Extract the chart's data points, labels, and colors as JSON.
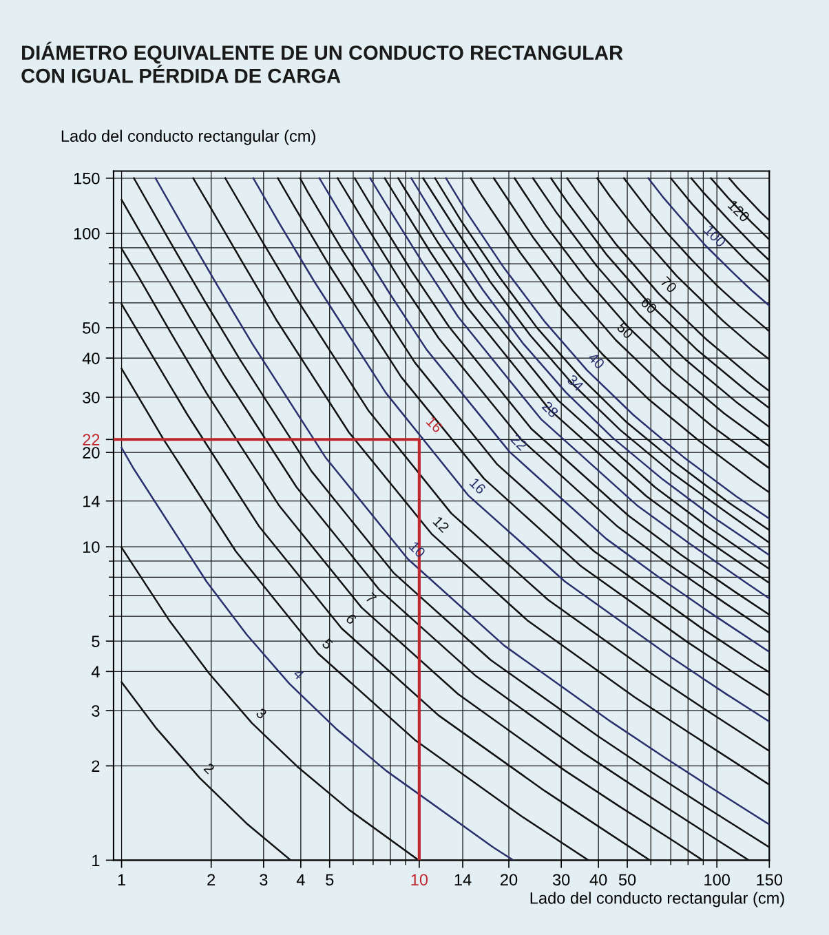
{
  "chart_data": {
    "type": "line",
    "title": "DIÁMETRO EQUIVALENTE DE UN CONDUCTO RECTANGULAR\nCON IGUAL PÉRDIDA DE CARGA",
    "xlabel": "Lado del conducto rectangular (cm)",
    "ylabel": "Lado del conducto rectangular (cm)",
    "log": "xy",
    "grid": true,
    "legend": false,
    "marker": "none",
    "line_style": "solid",
    "xlim": [
      0.94,
      150
    ],
    "ylim": [
      1,
      158
    ],
    "xticks": [
      1,
      2,
      3,
      4,
      5,
      10,
      14,
      20,
      30,
      40,
      50,
      100,
      150
    ],
    "yticks": [
      1,
      2,
      3,
      4,
      5,
      10,
      14,
      20,
      22,
      30,
      40,
      50,
      100,
      150
    ],
    "annotations": [
      {
        "text": "16",
        "x": 10,
        "y": 22
      }
    ],
    "series": [
      {
        "name": "2",
        "color": "#111111",
        "x": [
          1,
          1.31,
          1.83,
          2.63,
          3.7
        ],
        "values": [
          3.7,
          2.63,
          1.83,
          1.31,
          1
        ]
      },
      {
        "name": "3",
        "color": "#111111",
        "x": [
          1,
          1.45,
          1.97,
          2.74,
          3.94,
          5.8,
          9.95
        ],
        "values": [
          9.95,
          5.8,
          3.94,
          2.74,
          1.97,
          1.45,
          1
        ]
      },
      {
        "name": "4",
        "color": "#2a2f6e",
        "x": [
          1,
          1.1,
          1.93,
          2.63,
          3.66,
          5.25,
          7.74,
          17.7,
          20.7
        ],
        "values": [
          20.7,
          17.7,
          7.74,
          5.25,
          3.66,
          2.63,
          1.93,
          1.1,
          1
        ]
      },
      {
        "name": "5",
        "color": "#111111",
        "x": [
          1,
          1.38,
          2.42,
          4.57,
          9.67,
          22.1,
          37
        ],
        "values": [
          37,
          22.1,
          9.67,
          4.57,
          2.42,
          1.38,
          1
        ]
      },
      {
        "name": "6",
        "color": "#111111",
        "x": [
          1,
          1.27,
          1.66,
          2.9,
          5.49,
          11.6,
          26.5,
          40.6,
          59.5
        ],
        "values": [
          59.5,
          40.6,
          26.5,
          11.6,
          5.49,
          2.9,
          1.66,
          1.27,
          1
        ]
      },
      {
        "name": "7",
        "color": "#111111",
        "x": [
          1,
          1.14,
          1.48,
          1.93,
          3.39,
          6.4,
          13.5,
          30.9,
          47.3,
          72.7,
          89.5
        ],
        "values": [
          89.5,
          72.7,
          47.3,
          30.9,
          13.5,
          6.4,
          3.39,
          1.93,
          1.48,
          1.14,
          1
        ]
      },
      {
        "color": "#111111",
        "x": [
          1,
          1.3,
          1.69,
          2.21,
          3.87,
          7.32,
          15.5,
          35.3,
          54.1,
          83.1,
          128
        ],
        "values": [
          128,
          83.1,
          54.1,
          35.3,
          15.5,
          7.32,
          3.87,
          2.21,
          1.69,
          1.3,
          1
        ]
      },
      {
        "color": "#111111",
        "x": [
          1.1,
          1.46,
          1.9,
          2.49,
          4.35,
          8.23,
          17.4,
          39.8,
          60.9,
          93.5,
          150
        ],
        "values": [
          150,
          93.5,
          60.9,
          39.8,
          17.4,
          8.23,
          4.35,
          2.49,
          1.9,
          1.46,
          1.1
        ]
      },
      {
        "name": "10",
        "color": "#2a2f6e",
        "x": [
          1.3,
          1.62,
          2.11,
          2.76,
          4.84,
          9.15,
          19.3,
          44.2,
          67.6,
          104,
          150
        ],
        "values": [
          150,
          104,
          67.6,
          44.2,
          19.3,
          9.15,
          4.84,
          2.76,
          2.11,
          1.62,
          1.3
        ]
      },
      {
        "name": "12",
        "color": "#111111",
        "x": [
          1.74,
          1.95,
          2.54,
          3.31,
          5.8,
          11,
          23.2,
          53,
          81.2,
          125,
          150
        ],
        "values": [
          150,
          125,
          81.2,
          53,
          23.2,
          11,
          5.8,
          3.31,
          2.54,
          1.95,
          1.74
        ]
      },
      {
        "color": "#111111",
        "x": [
          2.23,
          2.96,
          3.87,
          6.77,
          12.8,
          27.1,
          61.9,
          94.7,
          150
        ],
        "values": [
          150,
          94.7,
          61.9,
          27.1,
          12.8,
          6.77,
          3.87,
          2.96,
          2.23
        ]
      },
      {
        "name": "16",
        "color": "#2a2f6e",
        "x": [
          2.77,
          3.38,
          4.42,
          7.74,
          14.6,
          30.9,
          70.7,
          108,
          150
        ],
        "values": [
          150,
          108,
          70.7,
          30.9,
          14.6,
          7.74,
          4.42,
          3.38,
          2.77
        ]
      },
      {
        "color": "#111111",
        "x": [
          3.35,
          3.8,
          4.97,
          8.7,
          16.5,
          34.8,
          79.5,
          122,
          150
        ],
        "values": [
          150,
          122,
          79.5,
          34.8,
          16.5,
          8.7,
          4.97,
          3.8,
          3.35
        ]
      },
      {
        "color": "#111111",
        "x": [
          3.98,
          4.23,
          5.52,
          9.67,
          18.3,
          38.7,
          88.4,
          135,
          150
        ],
        "values": [
          150,
          135,
          88.4,
          38.7,
          18.3,
          9.67,
          5.52,
          4.23,
          3.98
        ]
      },
      {
        "name": "22",
        "color": "#2a2f6e",
        "x": [
          4.62,
          6.07,
          7.99,
          10.6,
          20.1,
          42.5,
          63.9,
          97.2,
          150
        ],
        "values": [
          150,
          97.2,
          63.9,
          42.5,
          20.1,
          10.6,
          7.99,
          6.07,
          4.62
        ]
      },
      {
        "color": "#111111",
        "x": [
          5.32,
          6.63,
          8.72,
          11.6,
          22,
          46.4,
          69.7,
          106,
          150
        ],
        "values": [
          150,
          106,
          69.7,
          46.4,
          22,
          11.6,
          8.72,
          6.63,
          5.32
        ]
      },
      {
        "color": "#111111",
        "x": [
          6.07,
          7.18,
          9.44,
          12.6,
          23.8,
          50.3,
          75.6,
          115,
          150
        ],
        "values": [
          150,
          115,
          75.6,
          50.3,
          23.8,
          12.6,
          9.44,
          7.18,
          6.07
        ]
      },
      {
        "name": "28",
        "color": "#2a2f6e",
        "x": [
          6.84,
          7.73,
          10.2,
          13.5,
          25.6,
          54.2,
          81.4,
          124,
          150
        ],
        "values": [
          150,
          124,
          81.4,
          54.2,
          25.6,
          13.5,
          10.2,
          7.73,
          6.84
        ]
      },
      {
        "color": "#111111",
        "x": [
          7.66,
          8.28,
          10.9,
          14.5,
          27.4,
          58,
          87.2,
          133,
          150
        ],
        "values": [
          150,
          133,
          87.2,
          58,
          27.4,
          14.5,
          10.9,
          8.28,
          7.66
        ]
      },
      {
        "color": "#111111",
        "x": [
          8.5,
          8.84,
          11.6,
          15.5,
          29.3,
          61.9,
          93,
          141,
          150
        ],
        "values": [
          150,
          141,
          93,
          61.9,
          29.3,
          15.5,
          11.6,
          8.84,
          8.5
        ]
      },
      {
        "name": "34",
        "color": "#2a2f6e",
        "x": [
          9.4,
          12.3,
          16.4,
          22.3,
          31.1,
          44.6,
          65.8,
          98.8,
          150
        ],
        "values": [
          150,
          98.8,
          65.8,
          44.6,
          31.1,
          22.3,
          16.4,
          12.3,
          9.4
        ]
      },
      {
        "color": "#111111",
        "x": [
          10.3,
          13.1,
          17.4,
          23.6,
          32.9,
          47.3,
          69.6,
          105,
          150
        ],
        "values": [
          150,
          105,
          69.6,
          47.3,
          32.9,
          23.6,
          17.4,
          13.1,
          10.3
        ]
      },
      {
        "color": "#111111",
        "x": [
          11.3,
          13.8,
          18.4,
          24.9,
          34.8,
          49.9,
          73.5,
          110,
          150
        ],
        "values": [
          150,
          110,
          73.5,
          49.9,
          34.8,
          24.9,
          18.4,
          13.8,
          11.3
        ]
      },
      {
        "name": "40",
        "color": "#2a2f6e",
        "x": [
          12.3,
          14.5,
          19.3,
          26.3,
          36.6,
          52.5,
          77.4,
          116,
          150
        ],
        "values": [
          150,
          116,
          77.4,
          52.5,
          36.6,
          26.3,
          19.3,
          14.5,
          12.3
        ]
      },
      {
        "color": "#111111",
        "x": [
          14.9,
          16.3,
          21.8,
          29.5,
          41.2,
          59.1,
          87,
          131,
          150
        ],
        "values": [
          150,
          131,
          87,
          59.1,
          41.2,
          29.5,
          21.8,
          16.3,
          14.9
        ]
      },
      {
        "name": "50",
        "color": "#111111",
        "x": [
          17.8,
          24.2,
          32.8,
          45.7,
          65.7,
          96.7,
          150
        ],
        "values": [
          150,
          96.7,
          65.7,
          45.7,
          32.8,
          24.2,
          17.8
        ]
      },
      {
        "color": "#111111",
        "x": [
          20.9,
          26.6,
          36.1,
          50.3,
          72.2,
          106,
          150
        ],
        "values": [
          150,
          106,
          72.2,
          50.3,
          36.1,
          26.6,
          20.9
        ]
      },
      {
        "name": "60",
        "color": "#111111",
        "x": [
          24.1,
          29,
          39.4,
          54.9,
          78.8,
          116,
          150
        ],
        "values": [
          150,
          116,
          78.8,
          54.9,
          39.4,
          29,
          24.1
        ]
      },
      {
        "color": "#111111",
        "x": [
          27.7,
          31.4,
          42.7,
          59.5,
          85.3,
          126,
          150
        ],
        "values": [
          150,
          126,
          85.3,
          59.5,
          42.7,
          31.4,
          27.7
        ]
      },
      {
        "name": "70",
        "color": "#111111",
        "x": [
          31.4,
          33.9,
          46,
          64,
          91.9,
          135,
          150
        ],
        "values": [
          150,
          135,
          91.9,
          64,
          46,
          33.9,
          31.4
        ]
      },
      {
        "color": "#111111",
        "x": [
          39.6,
          43.8,
          52.5,
          73.2,
          105,
          131,
          150
        ],
        "values": [
          150,
          131,
          105,
          73.2,
          52.5,
          43.8,
          39.6
        ]
      },
      {
        "color": "#111111",
        "x": [
          48.7,
          59.1,
          67.6,
          82.3,
          101,
          118,
          150
        ],
        "values": [
          150,
          118,
          101,
          82.3,
          67.6,
          59.1,
          48.7
        ]
      },
      {
        "name": "100",
        "color": "#2a2f6e",
        "x": [
          58.8,
          65.7,
          75.1,
          91.5,
          113,
          131,
          150
        ],
        "values": [
          150,
          131,
          113,
          91.5,
          75.1,
          65.7,
          58.8
        ]
      },
      {
        "color": "#111111",
        "x": [
          70,
          82.6,
          101,
          124,
          150
        ],
        "values": [
          150,
          124,
          101,
          82.6,
          70
        ]
      },
      {
        "name": "120",
        "color": "#111111",
        "x": [
          82,
          90.1,
          110,
          135,
          150
        ],
        "values": [
          150,
          135,
          110,
          90.1,
          82
        ]
      },
      {
        "color": "#111111",
        "x": [
          95.5,
          109,
          119,
          130,
          150
        ],
        "values": [
          150,
          130,
          119,
          109,
          95.5
        ]
      },
      {
        "color": "#111111",
        "x": [
          110,
          117,
          128,
          140,
          150
        ],
        "values": [
          150,
          140,
          128,
          117,
          110
        ]
      },
      {
        "color": "#c0272d",
        "x": [
          0.94,
          10,
          10
        ],
        "values": [
          22,
          22,
          1
        ]
      }
    ]
  }
}
